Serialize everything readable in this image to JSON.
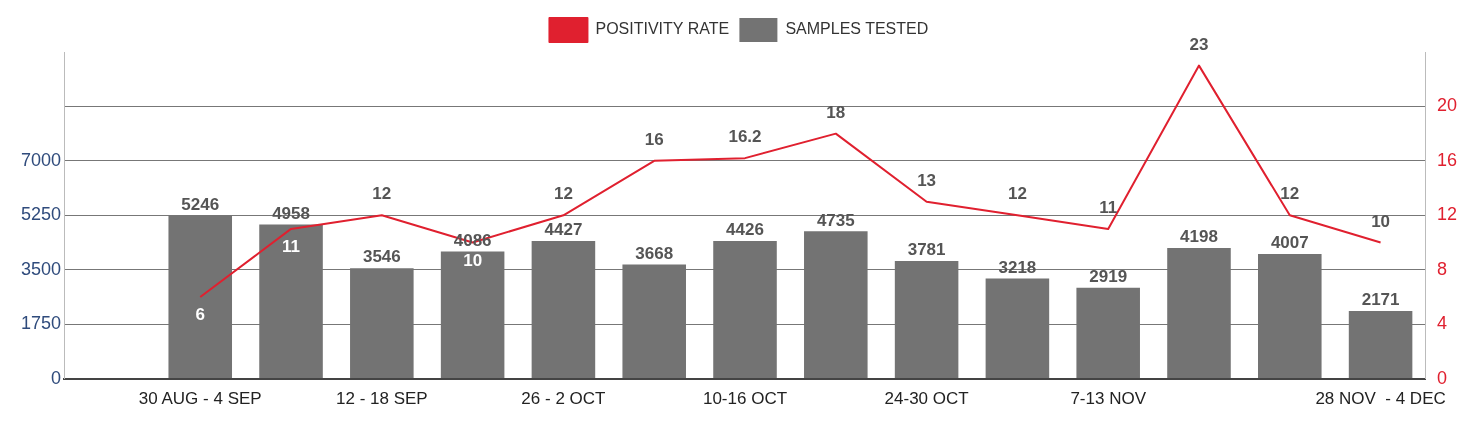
{
  "chart_data": {
    "type": "bar",
    "categories": [
      null,
      "30 AUG - 4 SEP",
      null,
      "12 - 18 SEP",
      null,
      "26 - 2 OCT",
      null,
      "10-16 OCT",
      null,
      "24-30 OCT",
      null,
      "7-13 NOV",
      null,
      null,
      "28 NOV  - 4 DEC"
    ],
    "series": [
      {
        "name": "POSITIVITY RATE",
        "type": "line",
        "axis": "y2",
        "color": "#e0202f",
        "values": [
          null,
          6,
          11,
          12,
          10,
          12,
          16,
          16.2,
          18,
          13,
          12,
          11,
          23,
          12,
          10
        ]
      },
      {
        "name": "SAMPLES TESTED",
        "color": "#737373",
        "values": [
          null,
          5246,
          4958,
          3546,
          4086,
          4427,
          3668,
          4426,
          4735,
          3781,
          3218,
          2919,
          4198,
          4007,
          2171
        ]
      }
    ],
    "ylim": [
      0,
      10500
    ],
    "yticks": [
      0,
      1750,
      3500,
      5250,
      7000,
      {
        "value": 8750,
        "label": null
      }
    ],
    "y2lim": [
      0,
      24
    ],
    "y2ticks": [
      0,
      4,
      8,
      12,
      16,
      20
    ],
    "grid": "y",
    "legend": "top",
    "marker": "none",
    "line_style": "solid",
    "data_labels": true
  }
}
